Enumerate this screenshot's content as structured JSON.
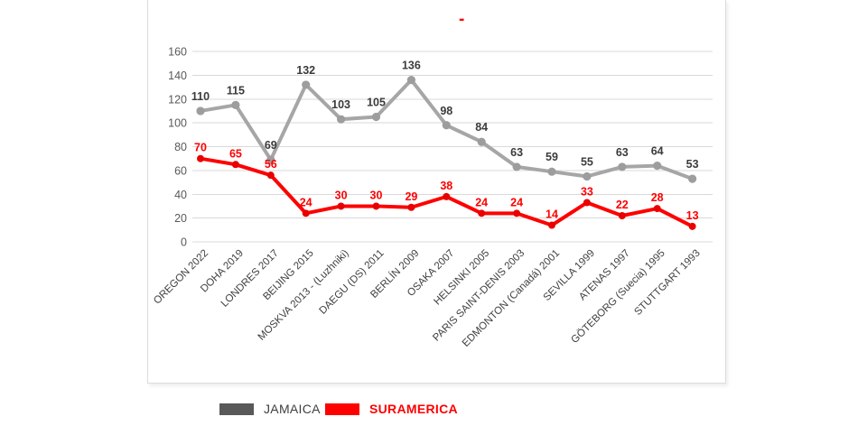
{
  "chart_data": {
    "type": "line",
    "title": "-",
    "title_color": "#ff0000",
    "categories": [
      "OREGON 2022",
      "DOHA 2019",
      "LONDRES 2017",
      "BEIJING 2015",
      "MOSKVA 2013 - (Luzhniki)",
      "DAEGU (DS) 2011",
      "BERLÍN 2009",
      "OSAKA 2007",
      "HELSINKI 2005",
      "PARIS SAINT-DENIS 2003",
      "EDMONTON (Canadá) 2001",
      "SEVILLA 1999",
      "ATENAS 1997",
      "GÖTEBORG (Suecia) 1995",
      "STUTTGART 1993"
    ],
    "series": [
      {
        "name": "JAMAICA",
        "values": [
          110,
          115,
          69,
          132,
          103,
          105,
          136,
          98,
          84,
          63,
          59,
          55,
          63,
          64,
          53
        ],
        "line_color": "#a6a6a6",
        "marker_color": "#9d9d9d",
        "label_color": "#3b3b3b",
        "legend_color": "#595959",
        "legend_text_color": "#404040"
      },
      {
        "name": "SURAMERICA",
        "values": [
          70,
          65,
          56,
          24,
          30,
          30,
          29,
          38,
          24,
          24,
          14,
          33,
          22,
          28,
          13
        ],
        "line_color": "#fe0000",
        "marker_color": "#e80000",
        "label_color": "#fe0000",
        "legend_color": "#fe0000",
        "legend_text_color": "#fe0000"
      }
    ],
    "yticks": [
      0,
      20,
      40,
      60,
      80,
      100,
      120,
      140,
      160
    ],
    "ylim": [
      0,
      160
    ],
    "grid": "horizontal",
    "gridline_color": "#d9d9d9",
    "axis_tick_color": "#595959",
    "x_label_color": "#3f3f3f",
    "legend_position": "bottom",
    "data_labels": true
  }
}
